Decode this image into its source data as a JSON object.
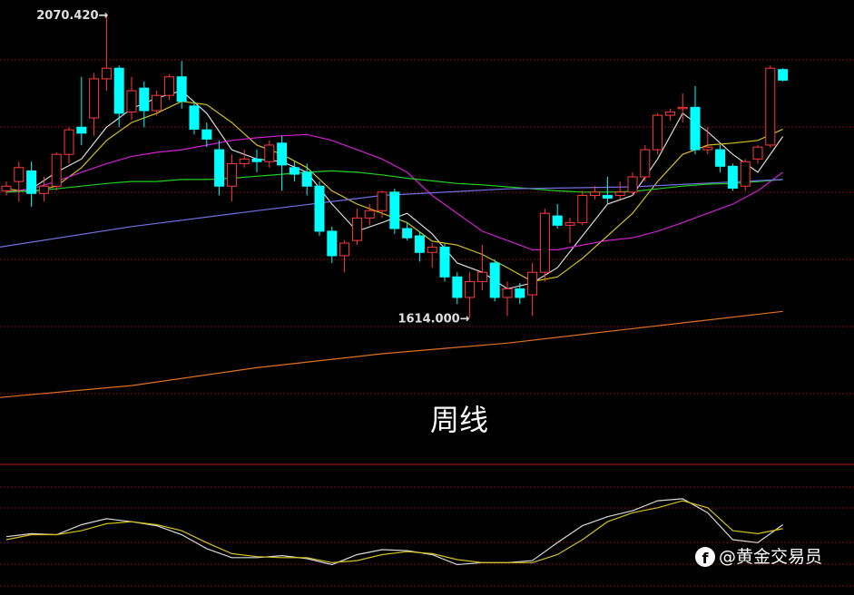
{
  "chart_data": [
    {
      "type": "candlestick",
      "title": "周线",
      "high_label": "2070.420→",
      "low_label": "1614.000→",
      "up_color": "#ff3b3b",
      "down_color": "#00ffff",
      "ylim": [
        1393,
        2094
      ],
      "categories": [
        null,
        null,
        null,
        null,
        null,
        null,
        null,
        null,
        null,
        null,
        null,
        null,
        null,
        null,
        null,
        null,
        null,
        null,
        null,
        null,
        null,
        null,
        null,
        null,
        null,
        null,
        null,
        null,
        null,
        null,
        null,
        null,
        null,
        null,
        null,
        null,
        null,
        null,
        null,
        null,
        null,
        null,
        null,
        null,
        null,
        null,
        null,
        null,
        null,
        null,
        null,
        null,
        null,
        null,
        null,
        null,
        null,
        null,
        null,
        null,
        null,
        null,
        null
      ],
      "open": [
        1806,
        1820,
        1836,
        1802,
        1813,
        1861,
        1902,
        1916,
        1975,
        1991,
        1925,
        1961,
        1927,
        1950,
        1978,
        1934,
        1898,
        1868,
        1813,
        1847,
        1854,
        1850,
        1878,
        1841,
        1834,
        1813,
        1745,
        1708,
        1731,
        1765,
        1776,
        1804,
        1749,
        1738,
        1713,
        1721,
        1676,
        1645,
        1669,
        1697,
        1645,
        1658,
        1649,
        1683,
        1768,
        1754,
        1758,
        1799,
        1799,
        1799,
        1804,
        1827,
        1868,
        1920,
        1930,
        1932,
        1868,
        1868,
        1843,
        1813,
        1854,
        1875,
        1989
      ],
      "high": [
        1820,
        1850,
        1850,
        1827,
        1864,
        1902,
        1978,
        1984,
        2070.42,
        1995,
        1978,
        1971,
        1957,
        1982,
        2002,
        1941,
        1909,
        1882,
        1861,
        1868,
        1868,
        1882,
        1889,
        1850,
        1847,
        1820,
        1752,
        1731,
        1779,
        1786,
        1806,
        1809,
        1758,
        1745,
        1727,
        1727,
        1683,
        1683,
        1724,
        1702,
        1669,
        1667,
        1697,
        1779,
        1786,
        1765,
        1806,
        1813,
        1827,
        1820,
        1834,
        1875,
        1923,
        1930,
        1953,
        1964,
        1902,
        1875,
        1847,
        1854,
        1875,
        1995,
        1991
      ],
      "low": [
        1799,
        1790,
        1782,
        1790,
        1806,
        1847,
        1875,
        1889,
        1957,
        1902,
        1913,
        1902,
        1919,
        1943,
        1930,
        1891,
        1872,
        1799,
        1790,
        1841,
        1834,
        1841,
        1806,
        1820,
        1799,
        1738,
        1697,
        1683,
        1724,
        1754,
        1765,
        1741,
        1731,
        1699,
        1690,
        1669,
        1635,
        1614,
        1656,
        1639,
        1617,
        1635,
        1617,
        1669,
        1749,
        1727,
        1754,
        1793,
        1786,
        1793,
        1799,
        1820,
        1861,
        1912,
        1909,
        1861,
        1861,
        1834,
        1806,
        1806,
        1847,
        1871,
        1971
      ],
      "close": [
        1813,
        1841,
        1802,
        1813,
        1861,
        1898,
        1893,
        1975,
        1991,
        1923,
        1957,
        1927,
        1950,
        1978,
        1941,
        1899,
        1884,
        1813,
        1847,
        1854,
        1850,
        1875,
        1845,
        1831,
        1813,
        1745,
        1708,
        1727,
        1765,
        1776,
        1804,
        1749,
        1735,
        1713,
        1721,
        1676,
        1645,
        1669,
        1683,
        1645,
        1658,
        1645,
        1683,
        1772,
        1754,
        1758,
        1799,
        1804,
        1795,
        1804,
        1827,
        1868,
        1920,
        1925,
        1932,
        1868,
        1872,
        1843,
        1810,
        1850,
        1872,
        1991,
        1973
      ],
      "series": [
        {
          "color": "#d8d8d8",
          "x": [
            0,
            2,
            4,
            6,
            8,
            10,
            12,
            14,
            16,
            18,
            20,
            22,
            24,
            26,
            28,
            30,
            32,
            34,
            36,
            38,
            40,
            42,
            44,
            46,
            48,
            50,
            52,
            54,
            56,
            58,
            60,
            62
          ],
          "values": [
            1804,
            1809,
            1834,
            1854,
            1902,
            1930,
            1946,
            1957,
            1923,
            1868,
            1854,
            1850,
            1834,
            1786,
            1745,
            1758,
            1772,
            1741,
            1697,
            1683,
            1658,
            1667,
            1690,
            1738,
            1786,
            1799,
            1854,
            1923,
            1895,
            1861,
            1834,
            1888
          ]
        },
        {
          "color": "#d4c21a",
          "x": [
            0,
            2,
            4,
            6,
            8,
            10,
            12,
            14,
            16,
            18,
            20,
            22,
            24,
            26,
            28,
            30,
            32,
            34,
            36,
            38,
            40,
            42,
            44,
            46,
            48,
            50,
            52,
            54,
            56,
            58,
            60,
            62
          ],
          "values": [
            1809,
            1804,
            1813,
            1841,
            1882,
            1909,
            1923,
            1941,
            1936,
            1909,
            1875,
            1861,
            1841,
            1806,
            1786,
            1772,
            1758,
            1730,
            1724,
            1710,
            1690,
            1669,
            1676,
            1704,
            1738,
            1772,
            1820,
            1861,
            1875,
            1878,
            1882,
            1899
          ]
        },
        {
          "color": "#d020d0",
          "x": [
            0,
            2,
            4,
            6,
            8,
            10,
            12,
            14,
            16,
            18,
            20,
            22,
            24,
            26,
            28,
            30,
            32,
            34,
            36,
            38,
            40,
            42,
            44,
            46,
            48,
            50,
            52,
            54,
            56,
            58,
            60,
            62
          ],
          "values": [
            1804,
            1809,
            1820,
            1834,
            1847,
            1858,
            1864,
            1868,
            1875,
            1882,
            1886,
            1889,
            1891,
            1882,
            1868,
            1854,
            1834,
            1799,
            1772,
            1745,
            1731,
            1717,
            1717,
            1724,
            1731,
            1735,
            1745,
            1758,
            1772,
            1786,
            1806,
            1834
          ]
        },
        {
          "color": "#20d020",
          "x": [
            0,
            2,
            4,
            6,
            8,
            10,
            12,
            14,
            16,
            18,
            20,
            22,
            24,
            26,
            28,
            30,
            32,
            34,
            36,
            38,
            40,
            42,
            44,
            46,
            48,
            50,
            52,
            54,
            56,
            58,
            60,
            62
          ],
          "values": [
            1804,
            1806,
            1809,
            1813,
            1817,
            1820,
            1820,
            1823,
            1823,
            1825,
            1828,
            1831,
            1834,
            1836,
            1834,
            1830,
            1825,
            1821,
            1817,
            1815,
            1812,
            1809,
            1806,
            1804,
            1804,
            1805,
            1809,
            1813,
            1816,
            1817,
            1820,
            1823
          ]
        },
        {
          "color": "#7070e0",
          "x": [
            -0.5,
            10,
            20,
            30,
            40,
            50,
            62
          ],
          "values": [
            1721,
            1752,
            1776,
            1799,
            1809,
            1812,
            1823
          ]
        },
        {
          "color": "#e07020",
          "x": [
            -0.5,
            10,
            20,
            30,
            40,
            50,
            62
          ],
          "values": [
            1494,
            1512,
            1539,
            1560,
            1576,
            1598,
            1624
          ]
        }
      ]
    },
    {
      "type": "line",
      "ylim": [
        0,
        100
      ],
      "series": [
        {
          "color": "#d8d8d8",
          "x": [
            0,
            2,
            4,
            6,
            8,
            10,
            12,
            14,
            16,
            18,
            20,
            22,
            24,
            26,
            28,
            30,
            32,
            34,
            36,
            38,
            40,
            42,
            44,
            46,
            48,
            50,
            52,
            54,
            56,
            58,
            60,
            62
          ],
          "values": [
            53,
            56,
            55,
            65,
            71,
            68,
            64,
            55,
            41,
            32,
            32,
            34,
            31,
            25,
            35,
            40,
            39,
            35,
            25,
            27,
            27,
            29,
            47,
            64,
            73,
            79,
            89,
            91,
            77,
            50,
            47,
            65
          ]
        },
        {
          "color": "#d4c21a",
          "x": [
            0,
            2,
            4,
            6,
            8,
            10,
            12,
            14,
            16,
            18,
            20,
            22,
            24,
            26,
            28,
            30,
            32,
            34,
            36,
            38,
            40,
            42,
            44,
            46,
            48,
            50,
            52,
            54,
            56,
            58,
            60,
            62
          ],
          "values": [
            50,
            55,
            55,
            59,
            66,
            68,
            65,
            59,
            47,
            36,
            33,
            32,
            32,
            27,
            29,
            35,
            38,
            36,
            30,
            27,
            27,
            27,
            35,
            50,
            68,
            77,
            82,
            89,
            82,
            59,
            56,
            61
          ]
        }
      ]
    }
  ],
  "watermark": "@黄金交易员"
}
